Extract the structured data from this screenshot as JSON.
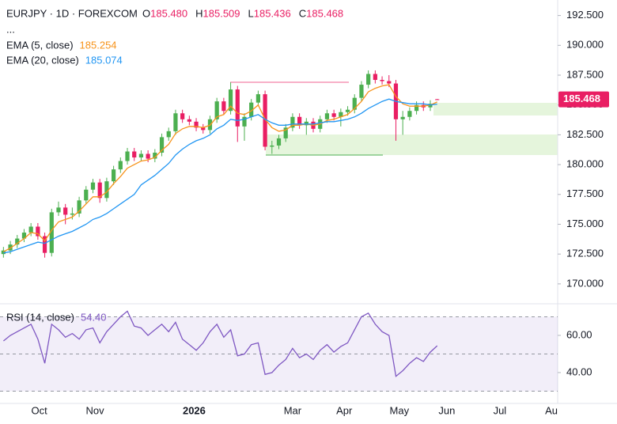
{
  "chart_data": [
    {
      "type": "candlestick",
      "symbol": "EURJPY · 1D · FOREXCOM",
      "ohlc_legend": [
        {
          "label": "O",
          "value": "185.480"
        },
        {
          "label": "H",
          "value": "185.509"
        },
        {
          "label": "L",
          "value": "185.436"
        },
        {
          "label": "C",
          "value": "185.468"
        }
      ],
      "more": "...",
      "up_color": "#4caf50",
      "down_color": "#e91e63",
      "open": [
        172.5,
        172.8,
        173.3,
        173.8,
        174.3,
        174.8,
        174.0,
        172.6,
        176.0,
        176.4,
        175.8,
        175.9,
        177.0,
        177.9,
        178.5,
        177.2,
        178.6,
        179.6,
        180.3,
        181.1,
        180.6,
        180.9,
        180.5,
        181.0,
        182.3,
        182.8,
        184.3,
        183.8,
        183.6,
        183.1,
        182.9,
        183.8,
        185.3,
        184.5,
        186.3,
        183.2,
        184.0,
        185.2,
        185.9,
        181.5,
        181.6,
        182.2,
        183.1,
        184.0,
        183.3,
        183.6,
        183.0,
        183.8,
        184.3,
        184.0,
        184.4,
        184.6,
        185.6,
        186.7,
        187.6,
        187.1,
        187.0,
        186.8,
        183.8,
        184.0,
        184.5,
        185.0,
        184.8,
        185.48
      ],
      "high": [
        173.1,
        173.6,
        174.1,
        174.6,
        175.1,
        175.1,
        174.3,
        176.3,
        176.9,
        176.7,
        176.4,
        177.3,
        178.2,
        178.8,
        178.8,
        178.9,
        179.9,
        180.6,
        181.4,
        181.4,
        181.2,
        181.2,
        181.3,
        182.6,
        183.1,
        184.6,
        184.6,
        184.1,
        183.9,
        183.4,
        184.1,
        185.6,
        185.6,
        186.9,
        186.6,
        184.3,
        185.5,
        186.2,
        186.2,
        182.0,
        182.5,
        183.4,
        184.3,
        184.3,
        183.9,
        183.9,
        184.1,
        184.6,
        184.6,
        184.7,
        184.9,
        185.9,
        187.0,
        187.9,
        187.9,
        187.4,
        187.5,
        187.1,
        184.5,
        184.8,
        185.3,
        185.3,
        185.4,
        185.509
      ],
      "low": [
        172.2,
        172.5,
        173.0,
        173.5,
        174.0,
        173.7,
        172.2,
        172.3,
        175.7,
        175.0,
        175.4,
        175.6,
        176.7,
        177.6,
        176.8,
        176.9,
        178.3,
        179.3,
        180.0,
        180.3,
        180.3,
        180.2,
        180.2,
        180.7,
        182.0,
        182.5,
        183.5,
        183.3,
        182.8,
        182.6,
        182.6,
        183.5,
        184.2,
        184.2,
        181.9,
        182.0,
        183.7,
        184.9,
        181.2,
        180.9,
        181.3,
        181.9,
        182.8,
        183.0,
        182.5,
        182.7,
        182.7,
        183.5,
        183.7,
        183.2,
        184.1,
        184.3,
        185.3,
        186.4,
        186.8,
        186.7,
        186.5,
        182.0,
        182.5,
        183.7,
        184.2,
        184.5,
        184.5,
        185.436
      ],
      "close": [
        172.8,
        173.3,
        173.8,
        174.3,
        174.8,
        174.0,
        172.6,
        176.0,
        176.4,
        175.8,
        175.9,
        177.0,
        177.9,
        178.5,
        177.2,
        178.6,
        179.6,
        180.3,
        181.1,
        180.6,
        180.9,
        180.5,
        181.0,
        182.3,
        182.8,
        184.3,
        183.8,
        183.6,
        183.1,
        182.9,
        183.8,
        185.3,
        184.5,
        186.3,
        183.2,
        184.0,
        185.2,
        185.9,
        181.5,
        181.6,
        182.2,
        183.1,
        184.0,
        183.3,
        183.6,
        183.0,
        183.8,
        184.3,
        184.0,
        184.4,
        184.6,
        185.6,
        186.7,
        187.6,
        187.1,
        187.0,
        186.8,
        183.8,
        184.0,
        184.5,
        185.0,
        184.8,
        185.1,
        185.468
      ],
      "series": [
        {
          "name": "EMA (5, close)",
          "color": "#f7931a",
          "values": [
            172.7,
            173.0,
            173.4,
            173.8,
            174.3,
            174.2,
            173.6,
            174.5,
            175.2,
            175.4,
            175.6,
            176.1,
            176.7,
            177.3,
            177.3,
            177.7,
            178.4,
            179.0,
            179.7,
            180.0,
            180.3,
            180.4,
            180.6,
            181.2,
            181.7,
            182.6,
            183.0,
            183.2,
            183.2,
            183.1,
            183.3,
            184.0,
            184.2,
            184.9,
            184.3,
            184.2,
            184.5,
            185.0,
            183.8,
            183.1,
            182.8,
            182.9,
            183.3,
            183.3,
            183.4,
            183.3,
            183.4,
            183.7,
            183.8,
            184.0,
            184.2,
            184.7,
            185.3,
            186.1,
            186.4,
            186.6,
            186.7,
            185.7,
            185.1,
            184.9,
            184.9,
            184.9,
            185.0,
            185.254
          ]
        },
        {
          "name": "EMA (20, close)",
          "color": "#2196f3",
          "values": [
            172.6,
            172.7,
            172.9,
            173.1,
            173.3,
            173.5,
            173.4,
            173.7,
            174.0,
            174.2,
            174.4,
            174.7,
            175.0,
            175.4,
            175.6,
            175.9,
            176.3,
            176.7,
            177.1,
            177.5,
            178.3,
            178.7,
            179.1,
            179.6,
            180.1,
            180.8,
            181.3,
            181.7,
            182.0,
            182.2,
            182.5,
            183.0,
            183.3,
            183.8,
            183.7,
            183.8,
            184.0,
            184.2,
            183.8,
            183.5,
            183.3,
            183.3,
            183.4,
            183.4,
            183.4,
            183.4,
            183.5,
            183.6,
            183.6,
            183.7,
            183.8,
            184.0,
            184.3,
            184.7,
            185.0,
            185.3,
            185.5,
            185.3,
            185.2,
            185.1,
            185.1,
            185.1,
            185.0,
            185.074
          ]
        }
      ],
      "xlim": [
        -0.5,
        80.5
      ],
      "xticks": [
        {
          "value": 5.2,
          "label": "Oct"
        },
        {
          "value": 13.3,
          "label": "Nov"
        },
        {
          "value": 27.7,
          "label": "2026",
          "bold": true
        },
        {
          "value": 42,
          "label": "Mar"
        },
        {
          "value": 49.5,
          "label": "Apr"
        },
        {
          "value": 57.5,
          "label": "May"
        },
        {
          "value": 64.4,
          "label": "Jun"
        },
        {
          "value": 72.1,
          "label": "Jul"
        },
        {
          "value": 80,
          "label": "Aug"
        }
      ],
      "ylim": [
        168.4,
        193.8
      ],
      "yticks": [
        {
          "value": 170,
          "label": "170.000"
        },
        {
          "value": 172.5,
          "label": "172.500"
        },
        {
          "value": 175,
          "label": "175.000"
        },
        {
          "value": 177.5,
          "label": "177.500"
        },
        {
          "value": 180,
          "label": "180.000"
        },
        {
          "value": 182.5,
          "label": "182.500"
        },
        {
          "value": 185,
          "label": "185.000"
        },
        {
          "value": 187.5,
          "label": "187.500"
        },
        {
          "value": 190,
          "label": "190.000"
        },
        {
          "value": 192.5,
          "label": "192.500"
        }
      ]
    },
    {
      "type": "line",
      "series": [
        {
          "name": "RSI (14, close)",
          "color": "#7e57c2",
          "values": [
            57,
            60,
            62,
            64,
            66,
            58,
            45,
            66,
            63,
            59,
            61,
            58,
            63,
            64,
            56,
            62,
            66,
            70,
            73,
            65,
            64,
            60,
            63,
            66,
            62,
            67,
            58,
            55,
            52,
            56,
            62,
            66,
            59,
            63,
            49,
            50,
            55,
            56,
            39,
            40,
            44,
            47,
            53,
            48,
            50,
            47,
            52,
            55,
            51,
            54,
            56,
            63,
            70,
            72,
            66,
            62,
            60,
            38,
            41,
            45,
            48,
            46,
            51,
            54.4
          ]
        }
      ],
      "legend_value": "54.40",
      "levels": [
        70,
        50,
        30
      ],
      "ylim": [
        23.4,
        77.0
      ],
      "yticks": [
        {
          "value": 40,
          "label": "40.00"
        },
        {
          "value": 60,
          "label": "60.00"
        }
      ]
    }
  ]
}
